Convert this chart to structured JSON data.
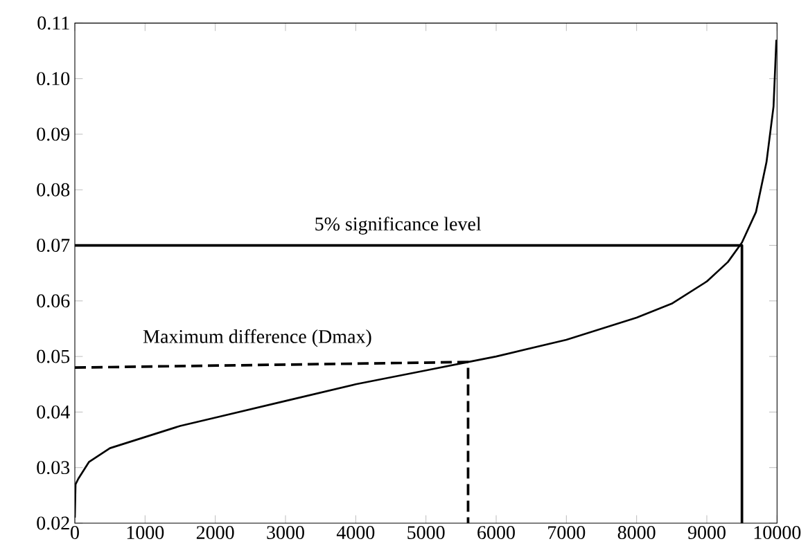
{
  "chart_data": {
    "type": "line",
    "xlim": [
      0,
      10000
    ],
    "ylim": [
      0.02,
      0.11
    ],
    "xticks": [
      0,
      1000,
      2000,
      3000,
      4000,
      5000,
      6000,
      7000,
      8000,
      9000,
      10000
    ],
    "yticks": [
      0.02,
      0.03,
      0.04,
      0.05,
      0.06,
      0.07,
      0.08,
      0.09,
      {
        "value": 0.1,
        "label": "0.10"
      },
      0.11
    ],
    "grid": false,
    "marker": "none",
    "series": [
      {
        "color": "#000000",
        "line_style": "solid",
        "x": [
          0,
          10,
          50,
          200,
          500,
          1000,
          1500,
          2000,
          3000,
          4000,
          5000,
          5600,
          6000,
          7000,
          8000,
          8500,
          9000,
          9300,
          9500,
          9700,
          9850,
          9950,
          9990
        ],
        "values": [
          0.021,
          0.027,
          0.028,
          0.031,
          0.0335,
          0.0355,
          0.0375,
          0.039,
          0.042,
          0.045,
          0.0475,
          0.049,
          0.05,
          0.053,
          0.057,
          0.0595,
          0.0635,
          0.067,
          0.0705,
          0.076,
          0.085,
          0.095,
          0.107
        ]
      },
      {
        "color": "#000000",
        "line_style": "dashed",
        "x": [
          0,
          5600,
          5600
        ],
        "values": [
          0.048,
          0.049,
          0.02
        ]
      },
      {
        "color": "#000000",
        "line_style": "solid",
        "x": [
          0,
          9500,
          9500
        ],
        "values": [
          0.07,
          0.07,
          0.02
        ]
      }
    ],
    "annotations": [
      "5% significance level",
      "Maximum difference (Dmax)"
    ]
  }
}
